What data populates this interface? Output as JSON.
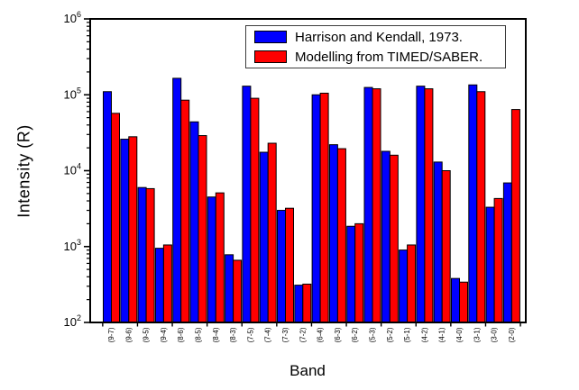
{
  "figure": {
    "background": "#ffffff",
    "frame_color": "#000000"
  },
  "chart_data": {
    "type": "bar",
    "title": "",
    "xlabel": "Band",
    "ylabel": "Intensity (R)",
    "y_scale": "log",
    "ylim": [
      100,
      1000000
    ],
    "y_tick_base": "10",
    "y_tick_exponents": [
      2,
      3,
      4,
      5,
      6
    ],
    "grid": false,
    "legend_position": "top-right",
    "categories": [
      "(9-7)",
      "(9-6)",
      "(9-5)",
      "(9-4)",
      "(8-6)",
      "(8-5)",
      "(8-4)",
      "(8-3)",
      "(7-5)",
      "(7-4)",
      "(7-3)",
      "(7-2)",
      "(6-4)",
      "(6-3)",
      "(6-2)",
      "(5-3)",
      "(5-2)",
      "(5-1)",
      "(4-2)",
      "(4-1)",
      "(4-0)",
      "(3-1)",
      "(3-0)",
      "(2-0)"
    ],
    "series": [
      {
        "name": "Harrison and Kendall, 1973.",
        "color": "#0000ff",
        "values": [
          110000,
          26000,
          6000,
          950,
          165000,
          44000,
          4500,
          780,
          130000,
          17500,
          3000,
          310,
          100000,
          22000,
          1850,
          125000,
          18000,
          900,
          130000,
          13000,
          380,
          135000,
          3300,
          6900
        ]
      },
      {
        "name": "Modelling from TIMED/SABER.",
        "color": "#ff0000",
        "values": [
          57000,
          28000,
          5800,
          1050,
          85000,
          29000,
          5100,
          660,
          90000,
          23000,
          3200,
          320,
          105000,
          19500,
          2000,
          120000,
          16000,
          1050,
          120000,
          10000,
          340,
          110000,
          4300,
          64000
        ]
      }
    ]
  }
}
